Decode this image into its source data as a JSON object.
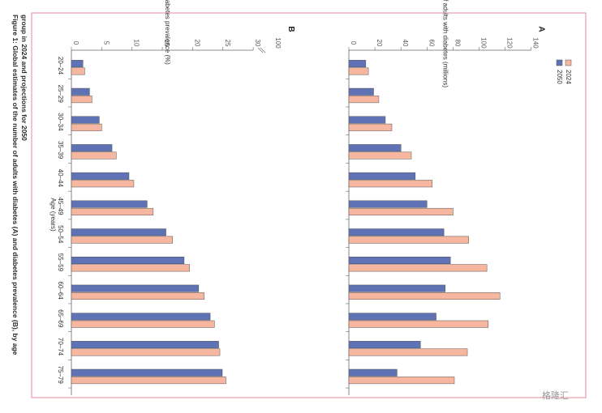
{
  "figure": {
    "caption_line1": "Figure 1: Global estimates of the number of adults with diabetes (A) and diabetes prevalence (B), by age",
    "caption_line2": "group in 2024 and projections for 2050",
    "shared_xlabel": "Age (years)",
    "watermark": "格隆汇",
    "colors": {
      "frame": "#e8889a",
      "series_2024": "#f7b6a0",
      "series_2050": "#5f72b5"
    }
  },
  "chart_data": [
    {
      "type": "bar",
      "panel": "A",
      "orientation": "rotated-90-clockwise",
      "categories": [
        "20–24",
        "25–29",
        "30–34",
        "35–39",
        "40–44",
        "45–49",
        "50–54",
        "55–59",
        "60–64",
        "65–69",
        "70–74",
        "75–79"
      ],
      "xlabel": "Age (years)",
      "ylabel": "Number of adults with diabetes (millions)",
      "ylim": [
        0,
        140
      ],
      "yticks": [
        0,
        20,
        40,
        60,
        80,
        100,
        120,
        140
      ],
      "legend": {
        "placement": "top-right"
      },
      "series": [
        {
          "name": "2024",
          "values": [
            15,
            23,
            33,
            48,
            64,
            80,
            92,
            106,
            116,
            107,
            91,
            81
          ]
        },
        {
          "name": "2050",
          "values": [
            13,
            19,
            28,
            40,
            51,
            60,
            73,
            78,
            74,
            67,
            55,
            37
          ]
        }
      ]
    },
    {
      "type": "bar",
      "panel": "B",
      "orientation": "rotated-90-clockwise",
      "categories": [
        "20–24",
        "25–29",
        "30–34",
        "35–39",
        "40–44",
        "45–49",
        "50–54",
        "55–59",
        "60–64",
        "65–69",
        "70–74",
        "75–79"
      ],
      "xlabel": "Age (years)",
      "ylabel": "Diabetes prevalence (%)",
      "ylim": [
        0,
        30
      ],
      "yticks": [
        0,
        5,
        10,
        15,
        20,
        25,
        30
      ],
      "axis_break_label": "100",
      "series": [
        {
          "name": "2024",
          "values": [
            2.2,
            3.4,
            5.0,
            7.4,
            10.3,
            13.5,
            16.7,
            19.5,
            21.9,
            23.6,
            24.5,
            25.5
          ]
        },
        {
          "name": "2050",
          "values": [
            1.9,
            3.0,
            4.6,
            6.7,
            9.5,
            12.5,
            15.6,
            18.6,
            21.0,
            22.9,
            24.3,
            24.9
          ]
        }
      ]
    }
  ]
}
